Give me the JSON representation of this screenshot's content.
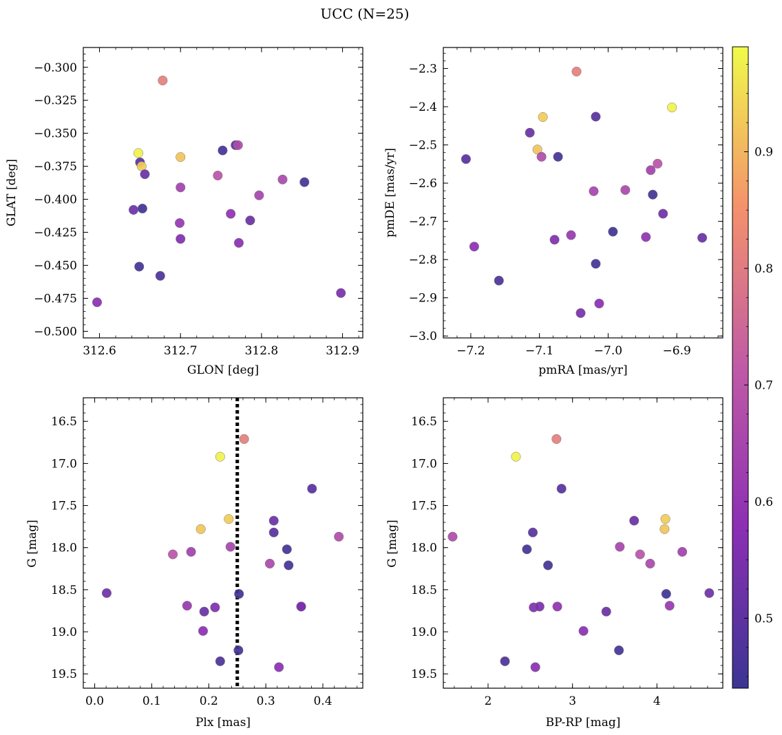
{
  "title": "UCC (N=25)",
  "colorbar": {
    "range": [
      0.44,
      0.99
    ],
    "ticks": [
      0.5,
      0.6,
      0.7,
      0.8,
      0.9
    ],
    "tick_labels": [
      "0.5",
      "0.6",
      "0.7",
      "0.8",
      "0.9"
    ],
    "colormap": "plasma"
  },
  "colormap_stops": [
    "#3b3593",
    "#8b2fb4",
    "#c05aa6",
    "#f4916c",
    "#f0fa4a"
  ],
  "chart_data": [
    {
      "type": "scatter",
      "id": "glon-glat",
      "xlabel": "GLON [deg]",
      "ylabel": "GLAT [deg]",
      "xlim": [
        312.58,
        312.925
      ],
      "ylim": [
        -0.505,
        -0.285
      ],
      "xticks": [
        312.6,
        312.7,
        312.8,
        312.9
      ],
      "xtick_labels": [
        "312.6",
        "312.7",
        "312.8",
        "312.9"
      ],
      "yticks": [
        -0.3,
        -0.325,
        -0.35,
        -0.375,
        -0.4,
        -0.425,
        -0.45,
        -0.475,
        -0.5
      ],
      "ytick_labels": [
        "−0.300",
        "−0.325",
        "−0.350",
        "−0.375",
        "−0.400",
        "−0.425",
        "−0.450",
        "−0.475",
        "−0.500"
      ],
      "x": [
        312.678,
        312.648,
        312.65,
        312.652,
        312.656,
        312.7,
        312.768,
        312.771,
        312.752,
        312.746,
        312.7,
        312.797,
        312.826,
        312.853,
        312.642,
        312.653,
        312.699,
        312.762,
        312.7,
        312.786,
        312.772,
        312.649,
        312.675,
        312.597,
        312.898
      ],
      "y": [
        -0.31,
        -0.365,
        -0.372,
        -0.375,
        -0.381,
        -0.368,
        -0.359,
        -0.359,
        -0.363,
        -0.382,
        -0.391,
        -0.397,
        -0.385,
        -0.387,
        -0.408,
        -0.407,
        -0.418,
        -0.411,
        -0.43,
        -0.416,
        -0.433,
        -0.451,
        -0.458,
        -0.478,
        -0.471
      ]
    },
    {
      "type": "scatter",
      "id": "pmra-pmde",
      "xlabel": "pmRA [mas/yr]",
      "ylabel": "pmDE [mas/yr]",
      "xlim": [
        -7.24,
        -6.833
      ],
      "ylim": [
        -3.005,
        -2.245
      ],
      "xticks": [
        -7.2,
        -7.1,
        -7.0,
        -6.9
      ],
      "xtick_labels": [
        "−7.2",
        "−7.1",
        "−7.0",
        "−6.9"
      ],
      "yticks": [
        -2.3,
        -2.4,
        -2.5,
        -2.6,
        -2.7,
        -2.8,
        -2.9,
        -3.0
      ],
      "ytick_labels": [
        "−2.3",
        "−2.4",
        "−2.5",
        "−2.6",
        "−2.7",
        "−2.8",
        "−2.9",
        "−3.0"
      ],
      "x": [
        -7.046,
        -6.907,
        -7.018,
        -7.095,
        -7.114,
        -7.103,
        -7.207,
        -7.097,
        -7.073,
        -6.928,
        -6.938,
        -7.021,
        -6.975,
        -6.935,
        -6.92,
        -6.993,
        -7.054,
        -6.945,
        -7.078,
        -6.863,
        -7.195,
        -7.018,
        -7.159,
        -7.013,
        -7.04
      ],
      "y": [
        -2.308,
        -2.402,
        -2.426,
        -2.427,
        -2.468,
        -2.512,
        -2.537,
        -2.531,
        -2.531,
        -2.549,
        -2.566,
        -2.621,
        -2.618,
        -2.63,
        -2.68,
        -2.727,
        -2.736,
        -2.741,
        -2.748,
        -2.743,
        -2.766,
        -2.811,
        -2.855,
        -2.915,
        -2.94
      ]
    },
    {
      "type": "scatter",
      "id": "plx-g",
      "xlabel": "Plx [mas]",
      "ylabel": "G [mag]",
      "xlim": [
        -0.02,
        0.47
      ],
      "ylim": [
        19.67,
        16.22
      ],
      "invert_y": true,
      "vline": 0.25,
      "xticks": [
        0.0,
        0.1,
        0.2,
        0.3,
        0.4
      ],
      "xtick_labels": [
        "0.0",
        "0.1",
        "0.2",
        "0.3",
        "0.4"
      ],
      "yticks": [
        16.5,
        17.0,
        17.5,
        18.0,
        18.5,
        19.0,
        19.5
      ],
      "ytick_labels": [
        "16.5",
        "17.0",
        "17.5",
        "18.0",
        "18.5",
        "19.0",
        "19.5"
      ],
      "x": [
        0.262,
        0.22,
        0.381,
        0.235,
        0.314,
        0.186,
        0.314,
        0.428,
        0.337,
        0.137,
        0.169,
        0.238,
        0.307,
        0.34,
        0.021,
        0.253,
        0.162,
        0.362,
        0.211,
        0.192,
        0.19,
        0.252,
        0.22,
        0.323,
        0.362
      ],
      "y": [
        16.71,
        16.92,
        17.3,
        17.66,
        17.68,
        17.78,
        17.82,
        17.87,
        18.02,
        18.08,
        18.05,
        17.99,
        18.19,
        18.21,
        18.54,
        18.55,
        18.69,
        18.7,
        18.71,
        18.76,
        18.99,
        19.22,
        19.35,
        19.42,
        18.7
      ]
    },
    {
      "type": "scatter",
      "id": "bprp-g",
      "xlabel": "BP-RP [mag]",
      "ylabel": "G [mag]",
      "xlim": [
        1.47,
        4.78
      ],
      "ylim": [
        19.67,
        16.22
      ],
      "invert_y": true,
      "xticks": [
        2,
        3,
        4
      ],
      "xtick_labels": [
        "2",
        "3",
        "4"
      ],
      "yticks": [
        16.5,
        17.0,
        17.5,
        18.0,
        18.5,
        19.0,
        19.5
      ],
      "ytick_labels": [
        "16.5",
        "17.0",
        "17.5",
        "18.0",
        "18.5",
        "19.0",
        "19.5"
      ],
      "x": [
        2.81,
        2.33,
        2.87,
        4.1,
        3.73,
        4.09,
        2.53,
        1.58,
        2.46,
        3.8,
        4.3,
        3.56,
        3.92,
        2.71,
        4.62,
        4.11,
        4.15,
        2.82,
        2.54,
        3.4,
        3.13,
        3.55,
        2.2,
        2.56,
        2.61
      ],
      "y": [
        16.71,
        16.92,
        17.3,
        17.66,
        17.68,
        17.78,
        17.82,
        17.87,
        18.02,
        18.08,
        18.05,
        17.99,
        18.19,
        18.21,
        18.54,
        18.55,
        18.69,
        18.7,
        18.71,
        18.76,
        18.99,
        19.22,
        19.35,
        19.42,
        18.7
      ]
    }
  ],
  "point_color_values": [
    0.81,
    0.98,
    0.49,
    0.93,
    0.52,
    0.92,
    0.49,
    0.67,
    0.46,
    0.7,
    0.64,
    0.65,
    0.66,
    0.46,
    0.53,
    0.45,
    0.61,
    0.59,
    0.56,
    0.52,
    0.58,
    0.46,
    0.47,
    0.58,
    0.55
  ]
}
